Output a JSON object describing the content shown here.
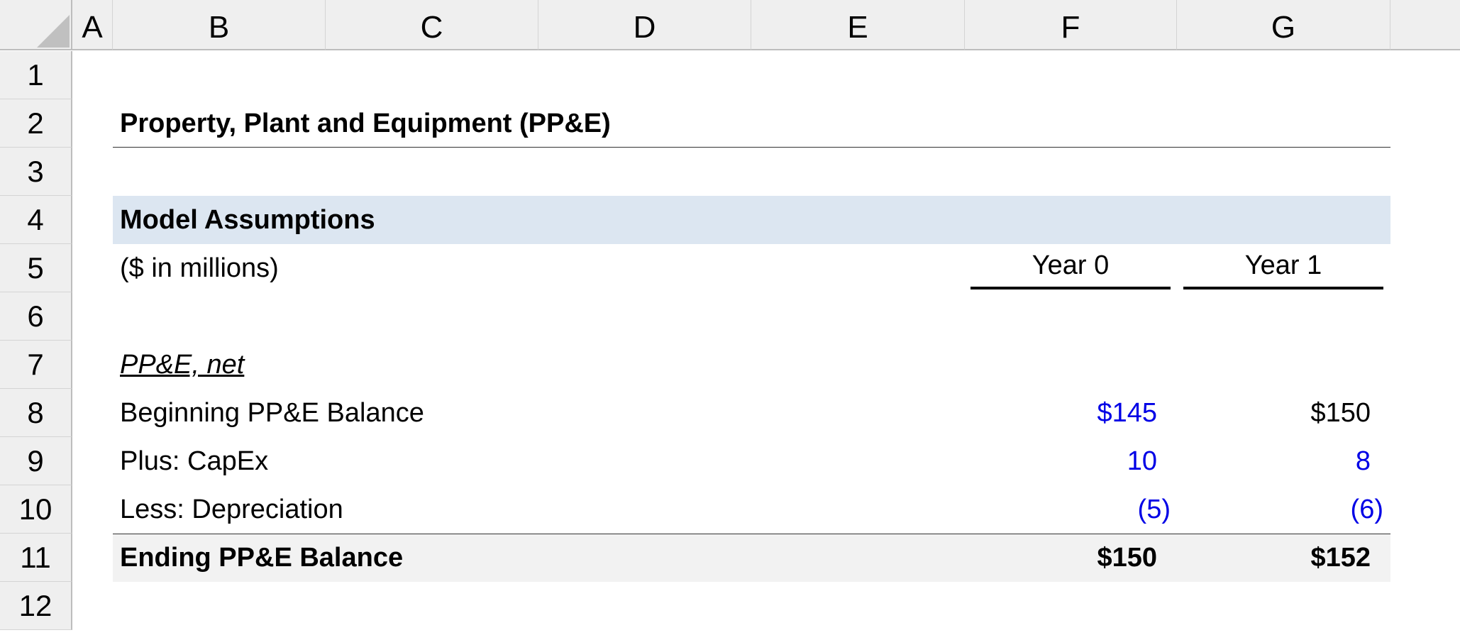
{
  "columns": [
    "A",
    "B",
    "C",
    "D",
    "E",
    "F",
    "G"
  ],
  "rows": [
    "1",
    "2",
    "3",
    "4",
    "5",
    "6",
    "7",
    "8",
    "9",
    "10",
    "11",
    "12"
  ],
  "title": "Property, Plant and Equipment (PP&E)",
  "section": "Model Assumptions",
  "units": "($ in millions)",
  "years": [
    "Year 0",
    "Year 1"
  ],
  "subheading": "PP&E, net",
  "lines": [
    {
      "label": "Beginning PP&E Balance",
      "values": [
        "$145",
        "$150"
      ],
      "colors": [
        "#0000e6",
        "#000000"
      ]
    },
    {
      "label": "Plus: CapEx",
      "values": [
        "10",
        "8"
      ],
      "colors": [
        "#0000e6",
        "#0000e6"
      ]
    },
    {
      "label": "Less: Depreciation",
      "values": [
        "(5)",
        "(6)"
      ],
      "colors": [
        "#0000e6",
        "#0000e6"
      ]
    }
  ],
  "total": {
    "label": "Ending PP&E Balance",
    "values": [
      "$150",
      "$152"
    ]
  },
  "colors": {
    "header_fill": "#dce6f1",
    "total_fill": "#f2f2f2",
    "input_blue": "#0000e6"
  }
}
